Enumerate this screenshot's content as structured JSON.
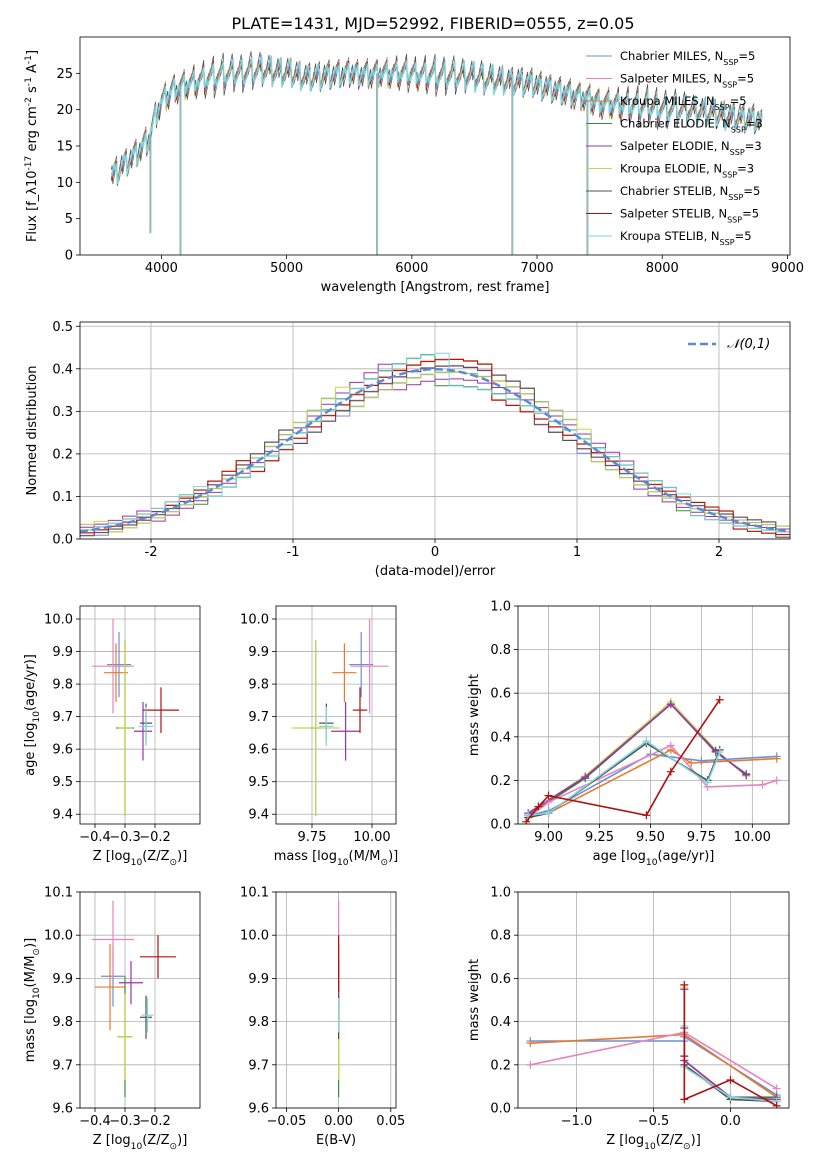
{
  "figure_title": "PLATE=1431, MJD=52992, FIBERID=0555, z=0.05",
  "colors": {
    "chabrier_miles": "#6b8fd6",
    "salpeter_miles": "#e585bf",
    "kroupa_miles": "#e67a2e",
    "chabrier_elodie": "#3c8a3c",
    "salpeter_elodie": "#9b33b0",
    "kroupa_elodie": "#c8d64a",
    "chabrier_stelib": "#505050",
    "salpeter_stelib": "#b01010",
    "kroupa_stelib": "#7fd6dc",
    "gaussian": "#5b8bd5"
  },
  "chart_data": [
    {
      "id": "spectrum",
      "type": "line",
      "xlabel": "wavelength [Angstrom, rest frame]",
      "ylabel": "Flux [f_λ10^-17 erg cm^-2 s^-1 A^-1]",
      "xlim": [
        3350,
        9020
      ],
      "ylim": [
        0,
        30
      ],
      "xticks": [
        4000,
        5000,
        6000,
        7000,
        8000,
        9000
      ],
      "yticks": [
        0,
        5,
        10,
        15,
        20,
        25
      ],
      "grid": false,
      "legend_position": "upper right",
      "legend": [
        {
          "label": "Chabrier MILES, N_SSP=5",
          "color_key": "chabrier_miles"
        },
        {
          "label": "Salpeter MILES, N_SSP=5",
          "color_key": "salpeter_miles"
        },
        {
          "label": "Kroupa MILES, N_SSP=5",
          "color_key": "kroupa_miles"
        },
        {
          "label": "Chabrier ELODIE, N_SSP=3",
          "color_key": "chabrier_elodie"
        },
        {
          "label": "Salpeter ELODIE, N_SSP=3",
          "color_key": "salpeter_elodie"
        },
        {
          "label": "Kroupa ELODIE, N_SSP=3",
          "color_key": "kroupa_elodie"
        },
        {
          "label": "Chabrier STELIB, N_SSP=5",
          "color_key": "chabrier_stelib"
        },
        {
          "label": "Salpeter STELIB, N_SSP=5",
          "color_key": "salpeter_stelib"
        },
        {
          "label": "Kroupa STELIB, N_SSP=5",
          "color_key": "kroupa_stelib"
        }
      ],
      "continuum": {
        "x": [
          3600,
          3700,
          3800,
          3900,
          3950,
          4000,
          4100,
          4200,
          4400,
          4600,
          4800,
          5000,
          5200,
          5500,
          6000,
          6500,
          7000,
          7300,
          7500,
          7800,
          8200,
          8600,
          8800
        ],
        "y": [
          11,
          12.5,
          14,
          16,
          19,
          21,
          23,
          23.5,
          24.5,
          25,
          25.5,
          25,
          24.5,
          25,
          25,
          24.5,
          23.5,
          22,
          21,
          20.5,
          20,
          19,
          18.5
        ]
      },
      "dropouts": [
        {
          "x": 3910,
          "y": 3
        },
        {
          "x": 4150,
          "y": 0
        },
        {
          "x": 5720,
          "y": 0
        },
        {
          "x": 6800,
          "y": 0
        },
        {
          "x": 7400,
          "y": 0
        }
      ]
    },
    {
      "id": "residual_hist",
      "type": "histogram",
      "xlabel": "(data-model)/error",
      "ylabel": "Normed distribution",
      "xlim": [
        -2.5,
        2.5
      ],
      "ylim": [
        0,
        0.51
      ],
      "xticks": [
        -2,
        -1,
        0,
        1,
        2
      ],
      "yticks": [
        0.0,
        0.1,
        0.2,
        0.3,
        0.4,
        0.5
      ],
      "grid": true,
      "legend_position": "upper right",
      "gaussian_label": "𝒩(0,1)",
      "bin_width": 0.1
    },
    {
      "id": "age_vs_Z",
      "type": "scatter_errorbar",
      "xlabel": "Z [log10(Z/Z⊙)]",
      "ylabel": "age  [log10(age/yr)]",
      "xlim": [
        -0.45,
        -0.05
      ],
      "ylim": [
        9.37,
        10.04
      ],
      "xticks": [
        -0.4,
        -0.3,
        -0.2
      ],
      "yticks": [
        9.4,
        9.5,
        9.6,
        9.7,
        9.8,
        9.9,
        10.0
      ],
      "grid": true,
      "points": [
        {
          "key": "chabrier_miles",
          "x": -0.32,
          "xerr": 0.04,
          "y": 9.86,
          "yerr": 0.1
        },
        {
          "key": "salpeter_miles",
          "x": -0.34,
          "xerr": 0.07,
          "y": 9.855,
          "yerr": 0.145
        },
        {
          "key": "kroupa_miles",
          "x": -0.33,
          "xerr": 0.04,
          "y": 9.835,
          "yerr": 0.09
        },
        {
          "key": "chabrier_elodie",
          "x": -0.3,
          "xerr": 0.03,
          "y": 9.665,
          "yerr": 0.27
        },
        {
          "key": "salpeter_elodie",
          "x": -0.24,
          "xerr": 0.03,
          "y": 9.655,
          "yerr": 0.09
        },
        {
          "key": "kroupa_elodie",
          "x": -0.3,
          "xerr": 0.025,
          "y": 9.665,
          "yerr": 0.27
        },
        {
          "key": "chabrier_stelib",
          "x": -0.23,
          "xerr": 0.02,
          "y": 9.68,
          "yerr": 0.06
        },
        {
          "key": "salpeter_stelib",
          "x": -0.18,
          "xerr": 0.06,
          "y": 9.72,
          "yerr": 0.07
        },
        {
          "key": "kroupa_stelib",
          "x": -0.23,
          "xerr": 0.025,
          "y": 9.67,
          "yerr": 0.06
        }
      ]
    },
    {
      "id": "age_vs_mass",
      "type": "scatter_errorbar",
      "xlabel": "mass [log10(M/M⊙)]",
      "xlim": [
        9.6,
        10.1
      ],
      "ylim": [
        9.37,
        10.04
      ],
      "xticks": [
        9.75,
        10.0
      ],
      "yticks": [
        9.4,
        9.5,
        9.6,
        9.7,
        9.8,
        9.9,
        10.0
      ],
      "grid": true,
      "points": [
        {
          "key": "chabrier_miles",
          "x": 9.955,
          "xerr": 0.05,
          "y": 9.86,
          "yerr": 0.1
        },
        {
          "key": "salpeter_miles",
          "x": 9.99,
          "xerr": 0.08,
          "y": 9.855,
          "yerr": 0.145
        },
        {
          "key": "kroupa_miles",
          "x": 9.885,
          "xerr": 0.05,
          "y": 9.835,
          "yerr": 0.09
        },
        {
          "key": "chabrier_elodie",
          "x": 9.765,
          "xerr": 0.025,
          "y": 9.665,
          "yerr": 0.27
        },
        {
          "key": "salpeter_elodie",
          "x": 9.89,
          "xerr": 0.06,
          "y": 9.655,
          "yerr": 0.09
        },
        {
          "key": "kroupa_elodie",
          "x": 9.765,
          "xerr": 0.1,
          "y": 9.665,
          "yerr": 0.27
        },
        {
          "key": "chabrier_stelib",
          "x": 9.81,
          "xerr": 0.03,
          "y": 9.68,
          "yerr": 0.06
        },
        {
          "key": "salpeter_stelib",
          "x": 9.95,
          "xerr": 0.03,
          "y": 9.72,
          "yerr": 0.07
        },
        {
          "key": "kroupa_stelib",
          "x": 9.81,
          "xerr": 0.03,
          "y": 9.67,
          "yerr": 0.06
        }
      ]
    },
    {
      "id": "weight_vs_age",
      "type": "line",
      "xlabel": "age  [log10(age/yr)]",
      "ylabel": "mass weight",
      "xlim": [
        8.85,
        10.18
      ],
      "ylim": [
        0,
        1
      ],
      "xticks": [
        9.0,
        9.25,
        9.5,
        9.75,
        10.0
      ],
      "yticks": [
        0.0,
        0.2,
        0.4,
        0.6,
        0.8,
        1.0
      ],
      "grid": true,
      "series": [
        {
          "key": "kroupa_elodie",
          "x": [
            8.9,
            9.18,
            9.6,
            9.82,
            9.97
          ],
          "y": [
            0.05,
            0.22,
            0.56,
            0.34,
            0.22
          ]
        },
        {
          "key": "chabrier_elodie",
          "x": [
            8.9,
            9.18,
            9.6,
            9.82,
            9.97
          ],
          "y": [
            0.04,
            0.21,
            0.55,
            0.33,
            0.23
          ]
        },
        {
          "key": "salpeter_elodie",
          "x": [
            8.9,
            9.18,
            9.6,
            9.82,
            9.97
          ],
          "y": [
            0.05,
            0.215,
            0.55,
            0.335,
            0.225
          ]
        },
        {
          "key": "chabrier_miles",
          "x": [
            8.9,
            9.0,
            9.5,
            9.75,
            10.12
          ],
          "y": [
            0.04,
            0.06,
            0.32,
            0.29,
            0.31
          ]
        },
        {
          "key": "kroupa_miles",
          "x": [
            8.9,
            9.0,
            9.6,
            9.7,
            10.12
          ],
          "y": [
            0.03,
            0.05,
            0.34,
            0.28,
            0.3
          ]
        },
        {
          "key": "salpeter_miles",
          "x": [
            8.9,
            9.0,
            9.6,
            9.78,
            10.05,
            10.12
          ],
          "y": [
            0.03,
            0.1,
            0.36,
            0.17,
            0.18,
            0.2
          ]
        },
        {
          "key": "chabrier_stelib",
          "x": [
            8.9,
            9.0,
            9.48,
            9.78,
            9.84
          ],
          "y": [
            0.03,
            0.05,
            0.37,
            0.2,
            0.34
          ]
        },
        {
          "key": "kroupa_stelib",
          "x": [
            8.9,
            9.0,
            9.48,
            9.78,
            9.84
          ],
          "y": [
            0.04,
            0.05,
            0.38,
            0.19,
            0.33
          ]
        },
        {
          "key": "salpeter_stelib",
          "x": [
            8.89,
            8.95,
            9.0,
            9.48,
            9.6,
            9.84
          ],
          "y": [
            0.01,
            0.08,
            0.13,
            0.04,
            0.24,
            0.57
          ]
        }
      ]
    },
    {
      "id": "mass_vs_Z",
      "type": "scatter_errorbar",
      "xlabel": "Z [log10(Z/Z⊙)]",
      "ylabel": "mass [log10(M/M⊙)]",
      "xlim": [
        -0.45,
        -0.05
      ],
      "ylim": [
        9.6,
        10.1
      ],
      "xticks": [
        -0.4,
        -0.3,
        -0.2
      ],
      "yticks": [
        9.6,
        9.7,
        9.8,
        9.9,
        10.0,
        10.1
      ],
      "grid": true,
      "points": [
        {
          "key": "chabrier_miles",
          "x": -0.34,
          "xerr": 0.04,
          "y": 9.905,
          "yerr": 0.07
        },
        {
          "key": "salpeter_miles",
          "x": -0.34,
          "xerr": 0.07,
          "y": 9.99,
          "yerr": 0.09
        },
        {
          "key": "kroupa_miles",
          "x": -0.35,
          "xerr": 0.05,
          "y": 9.88,
          "yerr": 0.1
        },
        {
          "key": "chabrier_elodie",
          "x": -0.3,
          "xerr": 0.025,
          "y": 9.765,
          "yerr": 0.14
        },
        {
          "key": "salpeter_elodie",
          "x": -0.28,
          "xerr": 0.04,
          "y": 9.89,
          "yerr": 0.05
        },
        {
          "key": "kroupa_elodie",
          "x": -0.3,
          "xerr": 0.025,
          "y": 9.765,
          "yerr": 0.1
        },
        {
          "key": "chabrier_stelib",
          "x": -0.23,
          "xerr": 0.02,
          "y": 9.81,
          "yerr": 0.05
        },
        {
          "key": "salpeter_stelib",
          "x": -0.19,
          "xerr": 0.06,
          "y": 9.95,
          "yerr": 0.05
        },
        {
          "key": "kroupa_stelib",
          "x": -0.225,
          "xerr": 0.02,
          "y": 9.815,
          "yerr": 0.04
        }
      ]
    },
    {
      "id": "mass_vs_ebv",
      "type": "scatter_errorbar",
      "xlabel": "E(B-V)",
      "xlim": [
        -0.06,
        0.055
      ],
      "ylim": [
        9.6,
        10.1
      ],
      "xticks": [
        -0.05,
        0.0,
        0.05
      ],
      "yticks": [
        9.6,
        9.7,
        9.8,
        9.9,
        10.0,
        10.1
      ],
      "grid": true,
      "points": [
        {
          "key": "chabrier_elodie",
          "x": 0.0,
          "xerr": 0,
          "y": 9.765,
          "yerr": 0.14
        },
        {
          "key": "kroupa_elodie",
          "x": 0.0,
          "xerr": 0,
          "y": 9.765,
          "yerr": 0.1
        },
        {
          "key": "salpeter_miles",
          "x": 0.0,
          "xerr": 0,
          "y": 9.99,
          "yerr": 0.09
        },
        {
          "key": "chabrier_miles",
          "x": 0.0,
          "xerr": 0,
          "y": 9.905,
          "yerr": 0.07
        },
        {
          "key": "kroupa_miles",
          "x": 0.0,
          "xerr": 0,
          "y": 9.88,
          "yerr": 0.1
        },
        {
          "key": "salpeter_elodie",
          "x": 0.0,
          "xerr": 0,
          "y": 9.89,
          "yerr": 0.05
        },
        {
          "key": "chabrier_stelib",
          "x": 0.0,
          "xerr": 0,
          "y": 9.81,
          "yerr": 0.05
        },
        {
          "key": "salpeter_stelib",
          "x": 0.0,
          "xerr": 0,
          "y": 9.935,
          "yerr": 0.065
        },
        {
          "key": "kroupa_stelib",
          "x": 0.0,
          "xerr": 0,
          "y": 9.815,
          "yerr": 0.04
        }
      ]
    },
    {
      "id": "weight_vs_Z",
      "type": "line",
      "xlabel": "Z [log10(Z/Z⊙)]",
      "ylabel": "mass weight",
      "xlim": [
        -1.38,
        0.38
      ],
      "ylim": [
        0,
        1
      ],
      "xticks": [
        -1.0,
        -0.5,
        0.0
      ],
      "yticks": [
        0.0,
        0.2,
        0.4,
        0.6,
        0.8,
        1.0
      ],
      "grid": true,
      "series": [
        {
          "key": "chabrier_miles",
          "x": [
            -1.3,
            -0.3,
            -0.3,
            0.3
          ],
          "y": [
            0.31,
            0.31,
            0.33,
            0.06
          ]
        },
        {
          "key": "kroupa_miles",
          "x": [
            -1.3,
            -0.3,
            0.3
          ],
          "y": [
            0.3,
            0.34,
            0.05
          ]
        },
        {
          "key": "salpeter_miles",
          "x": [
            -1.3,
            -0.3,
            0.3
          ],
          "y": [
            0.2,
            0.35,
            0.09
          ]
        },
        {
          "key": "chabrier_elodie",
          "x": [
            -0.3,
            -0.3,
            0.0,
            0.3
          ],
          "y": [
            0.55,
            0.22,
            0.05,
            0.05
          ]
        },
        {
          "key": "kroupa_elodie",
          "x": [
            -0.3,
            -0.3,
            0.0,
            0.3
          ],
          "y": [
            0.56,
            0.2,
            0.05,
            0.04
          ]
        },
        {
          "key": "salpeter_elodie",
          "x": [
            -0.3,
            -0.3,
            0.0,
            0.3
          ],
          "y": [
            0.55,
            0.22,
            0.05,
            0.04
          ]
        },
        {
          "key": "chabrier_stelib",
          "x": [
            -0.3,
            -0.3,
            0.0,
            0.3
          ],
          "y": [
            0.37,
            0.2,
            0.04,
            0.03
          ]
        },
        {
          "key": "kroupa_stelib",
          "x": [
            -0.3,
            -0.3,
            0.0,
            0.3
          ],
          "y": [
            0.38,
            0.19,
            0.05,
            0.03
          ]
        },
        {
          "key": "salpeter_stelib",
          "x": [
            -0.3,
            -0.3,
            -0.3,
            0.0,
            0.3
          ],
          "y": [
            0.57,
            0.24,
            0.04,
            0.13,
            0.01
          ]
        }
      ]
    }
  ]
}
